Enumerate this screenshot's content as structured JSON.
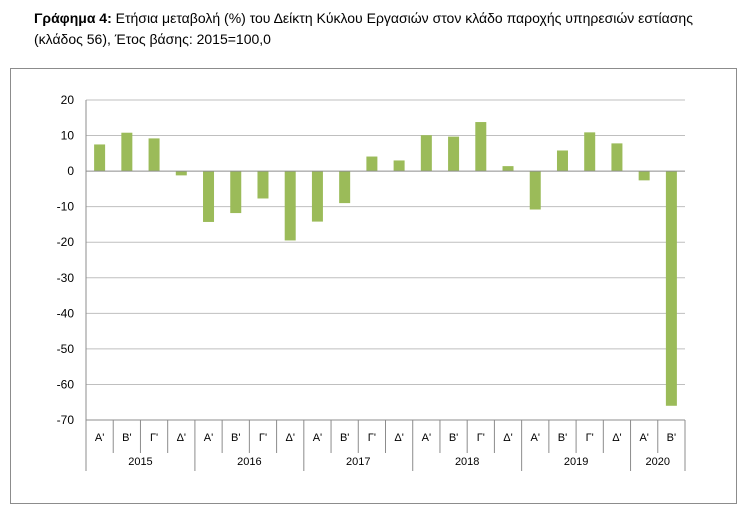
{
  "caption": {
    "lead": "Γράφημα 4:",
    "text": "Ετήσια μεταβολή (%) του Δείκτη Κύκλου Εργασιών στον κλάδο παροχής υπηρεσιών εστίασης (κλάδος 56), Έτος βάσης: 2015=100,0"
  },
  "colors": {
    "bar": "#9bbb59",
    "gridline": "#bfbfbf",
    "axis": "#8c8c8c"
  },
  "chart_data": {
    "type": "bar",
    "title": "",
    "xlabel": "",
    "ylabel": "",
    "ylim": [
      -70,
      20
    ],
    "y_ticks": [
      20,
      10,
      0,
      -10,
      -20,
      -30,
      -40,
      -50,
      -60,
      -70
    ],
    "grid": true,
    "legend": "none",
    "groups": [
      {
        "label": "2015",
        "quarters": [
          "Α'",
          "Β'",
          "Γ'",
          "Δ'"
        ]
      },
      {
        "label": "2016",
        "quarters": [
          "Α'",
          "Β'",
          "Γ'",
          "Δ'"
        ]
      },
      {
        "label": "2017",
        "quarters": [
          "Α'",
          "Β'",
          "Γ'",
          "Δ'"
        ]
      },
      {
        "label": "2018",
        "quarters": [
          "Α'",
          "Β'",
          "Γ'",
          "Δ'"
        ]
      },
      {
        "label": "2019",
        "quarters": [
          "Α'",
          "Β'",
          "Γ'",
          "Δ'"
        ]
      },
      {
        "label": "2020",
        "quarters": [
          "Α'",
          "Β'"
        ]
      }
    ],
    "values": [
      7.5,
      10.8,
      9.2,
      -1.2,
      -14.3,
      -11.8,
      -7.7,
      -19.5,
      -14.2,
      -9.0,
      4.1,
      3.0,
      10.1,
      9.7,
      13.8,
      1.4,
      -10.8,
      5.8,
      10.9,
      7.8,
      -2.6,
      -66.0
    ]
  }
}
